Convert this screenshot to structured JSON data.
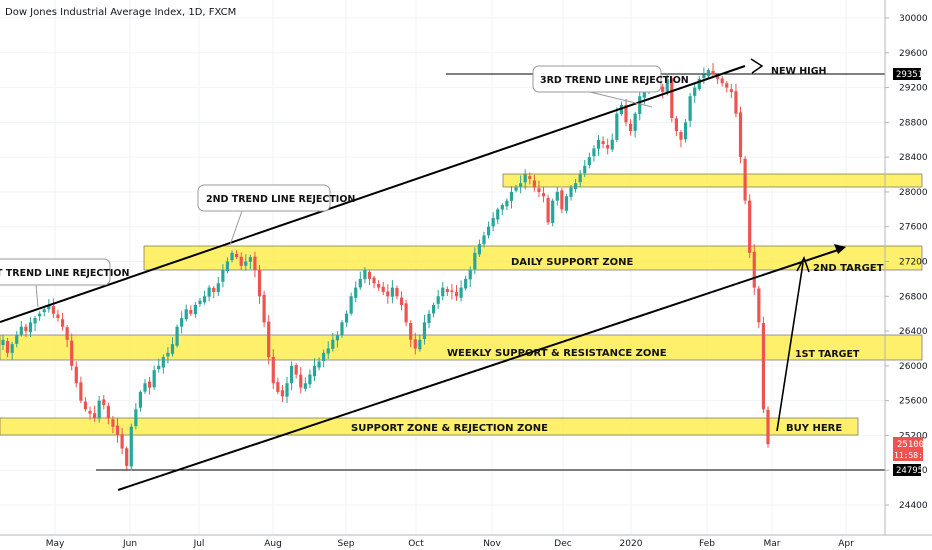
{
  "header": {
    "title": "Dow Jones Industrial Average Index, 1D, FXCM"
  },
  "colors": {
    "up": "#26a69a",
    "down": "#ef5350",
    "zone": "#ffeb3b",
    "zone_border": "#555555",
    "current_tag": "#ef5350",
    "line_tag": "#000000"
  },
  "price_axis": {
    "ticks": [
      "30000",
      "29600",
      "29200",
      "28800",
      "28400",
      "28000",
      "27600",
      "27200",
      "26800",
      "26400",
      "26000",
      "25600",
      "25200",
      "24800",
      "24400"
    ]
  },
  "time_axis": {
    "labels": [
      "May",
      "Jun",
      "Jul",
      "Aug",
      "Sep",
      "Oct",
      "Nov",
      "Dec",
      "2020",
      "Feb",
      "Mar",
      "Apr"
    ]
  },
  "price_tags": {
    "new_high_line": "29351",
    "current_price": "25100",
    "countdown": "11:58:27",
    "low_line": "24795"
  },
  "annotations": {
    "zones": {
      "daily": "DAILY SUPPORT ZONE",
      "weekly": "WEEKLY SUPPORT & RESISTANCE ZONE",
      "support": "SUPPORT ZONE & REJECTION ZONE"
    },
    "callouts": {
      "first": "T TREND LINE REJECTION",
      "second": "2ND TREND LINE REJECTION",
      "third": "3RD TREND LINE REJECTION"
    },
    "labels": {
      "new_high": "NEW HIGH",
      "second_target": "2ND TARGET",
      "first_target": "1ST TARGET",
      "buy_here": "BUY HERE"
    }
  },
  "chart_data": {
    "type": "candlestick",
    "title": "Dow Jones Industrial Average Index, 1D, FXCM",
    "x_labels": [
      "May",
      "Jun",
      "Jul",
      "Aug",
      "Sep",
      "Oct",
      "Nov",
      "Dec",
      "2020",
      "Feb",
      "Mar",
      "Apr"
    ],
    "y_ticks": [
      30000,
      29600,
      29200,
      28800,
      28400,
      28000,
      27600,
      27200,
      26800,
      26400,
      26000,
      25600,
      25200,
      24800,
      24400
    ],
    "ylim": [
      24150,
      30150
    ],
    "y_axis_position": "right",
    "horizontal_lines": [
      29351,
      24795
    ],
    "current_price": 25100,
    "zones": [
      {
        "name": "DAILY SUPPORT ZONE",
        "low": 27090,
        "high": 27380
      },
      {
        "name": "WEEKLY SUPPORT & RESISTANCE ZONE",
        "low": 26050,
        "high": 26340
      },
      {
        "name": "SUPPORT ZONE & REJECTION ZONE",
        "low": 25230,
        "high": 25400
      },
      {
        "name": "",
        "low": 28080,
        "high": 28230
      }
    ],
    "approx_closes": [
      26300,
      26150,
      26250,
      26350,
      26450,
      26400,
      26500,
      26550,
      26600,
      26650,
      26700,
      26600,
      26550,
      26450,
      26300,
      26000,
      25800,
      25600,
      25500,
      25450,
      25400,
      25600,
      25550,
      25400,
      25300,
      25200,
      25050,
      24850,
      25300,
      25500,
      25700,
      25800,
      25750,
      25950,
      26000,
      26100,
      26150,
      26250,
      26450,
      26550,
      26650,
      26600,
      26700,
      26750,
      26800,
      26900,
      26850,
      26950,
      27100,
      27200,
      27300,
      27250,
      27150,
      27200,
      27250,
      27100,
      26800,
      26500,
      26100,
      25800,
      25700,
      25650,
      25800,
      26000,
      25900,
      25750,
      25800,
      25900,
      26000,
      26050,
      26150,
      26200,
      26300,
      26350,
      26500,
      26600,
      26800,
      26900,
      27000,
      27100,
      27000,
      26950,
      26900,
      26850,
      26800,
      26900,
      26800,
      26700,
      26500,
      26300,
      26200,
      26300,
      26500,
      26600,
      26700,
      26800,
      26900,
      26850,
      26850,
      26800,
      26900,
      27000,
      27100,
      27300,
      27400,
      27500,
      27600,
      27700,
      27800,
      27850,
      27900,
      28000,
      28050,
      28100,
      28200,
      28150,
      28050,
      28000,
      27950,
      27650,
      27900,
      28000,
      27800,
      27950,
      28050,
      28100,
      28200,
      28300,
      28400,
      28500,
      28600,
      28550,
      28500,
      28600,
      28900,
      29000,
      28800,
      28700,
      28900,
      29100,
      29150,
      29250,
      29300,
      29200,
      29150,
      29300,
      28850,
      28700,
      28600,
      28800,
      29100,
      29200,
      29300,
      29350,
      29400,
      29350,
      29300,
      29250,
      29200,
      29150,
      28900,
      28400,
      27900,
      27300,
      26900,
      26500,
      25500,
      25100
    ]
  }
}
